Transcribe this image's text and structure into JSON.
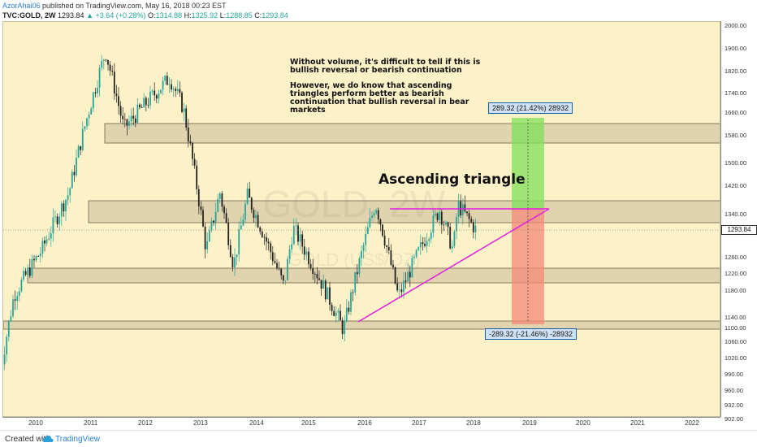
{
  "header": {
    "user": "AzorAhai06",
    "published": "published on TradingView.com, May 16, 2018 00:23 EST",
    "symbol": "TVC:GOLD, 2W",
    "last": "1293.84",
    "change": "▲ +3.64 (+0.28%)",
    "o_label": "O:",
    "o_value": "1314.88",
    "h_label": "H:",
    "h_value": "1325.92",
    "l_label": "L:",
    "l_value": "1288.85",
    "c_label": "C:",
    "c_value": "1293.84"
  },
  "watermark": {
    "big": "GOLD, 2W",
    "small": "GOLD (US$/OZ)"
  },
  "annotations": {
    "text_line1": "Without volume, it's difficult to tell if this is",
    "text_line2": "bullish reversal or bearish continuation",
    "text_line3": "However, we do know that ascending",
    "text_line4": "triangles perform better as bearish",
    "text_line5": "continuation that bullish reversal in bear",
    "text_line6": "markets",
    "pattern_label": "Ascending triangle"
  },
  "measures": {
    "up": "289.32 (21.42%) 28932",
    "down": "-289.32 (-21.46%) -28932"
  },
  "price_axis": {
    "labels": [
      "2000.00",
      "1900.00",
      "1820.00",
      "1740.00",
      "1660.00",
      "1580.00",
      "1500.00",
      "1420.00",
      "1340.00",
      "1260.00",
      "1220.00",
      "1180.00",
      "1140.00",
      "1100.00",
      "1060.00",
      "1020.00",
      "990.00",
      "960.00",
      "932.00",
      "902.00",
      "874.00"
    ],
    "current_price": "1293.84"
  },
  "time_axis": {
    "labels": [
      "2010",
      "2011",
      "2012",
      "2013",
      "2014",
      "2015",
      "2016",
      "2017",
      "2018",
      "2019",
      "2020",
      "2021",
      "2022"
    ]
  },
  "footer": {
    "created_with": "Created with",
    "brand": "TradingView"
  },
  "colors": {
    "up": "#26a69a",
    "down": "#222222",
    "trendline": "#e020e0",
    "zone": "#8a7a60",
    "target_up": "#90ee70",
    "target_down": "#f4a090"
  },
  "chart_data": {
    "type": "candlestick",
    "symbol": "TVC:GOLD",
    "interval": "2W",
    "x_range": [
      "2009",
      "2022"
    ],
    "ylim": [
      874,
      2000
    ],
    "scale": "log",
    "approx_path": [
      {
        "x": "2009-09",
        "y": 960
      },
      {
        "x": "2009-12",
        "y": 1130
      },
      {
        "x": "2010-06",
        "y": 1240
      },
      {
        "x": "2010-12",
        "y": 1400
      },
      {
        "x": "2011-08",
        "y": 1880
      },
      {
        "x": "2011-12",
        "y": 1600
      },
      {
        "x": "2012-10",
        "y": 1780
      },
      {
        "x": "2013-01",
        "y": 1670
      },
      {
        "x": "2013-06",
        "y": 1240
      },
      {
        "x": "2013-09",
        "y": 1400
      },
      {
        "x": "2013-12",
        "y": 1200
      },
      {
        "x": "2014-03",
        "y": 1390
      },
      {
        "x": "2014-11",
        "y": 1150
      },
      {
        "x": "2015-01",
        "y": 1300
      },
      {
        "x": "2015-12",
        "y": 1050
      },
      {
        "x": "2016-07",
        "y": 1370
      },
      {
        "x": "2016-12",
        "y": 1125
      },
      {
        "x": "2017-09",
        "y": 1350
      },
      {
        "x": "2017-12",
        "y": 1240
      },
      {
        "x": "2018-01",
        "y": 1365
      },
      {
        "x": "2018-05",
        "y": 1294
      }
    ],
    "zones": [
      [
        1560,
        1620
      ],
      [
        1310,
        1375
      ],
      [
        1160,
        1195
      ],
      [
        1050,
        1065
      ]
    ],
    "trendlines": [
      {
        "name": "resistance",
        "from": {
          "x": "2016-06",
          "y": 1355
        },
        "to": {
          "x": "2019-06",
          "y": 1355
        }
      },
      {
        "name": "support",
        "from": {
          "x": "2015-12",
          "y": 1062
        },
        "to": {
          "x": "2019-06",
          "y": 1355
        }
      }
    ],
    "targets": [
      {
        "label": "289.32 (21.42%) 28932",
        "from": 1355,
        "to": 1644
      },
      {
        "label": "-289.32 (-21.46%) -28932",
        "from": 1355,
        "to": 1066
      }
    ]
  }
}
